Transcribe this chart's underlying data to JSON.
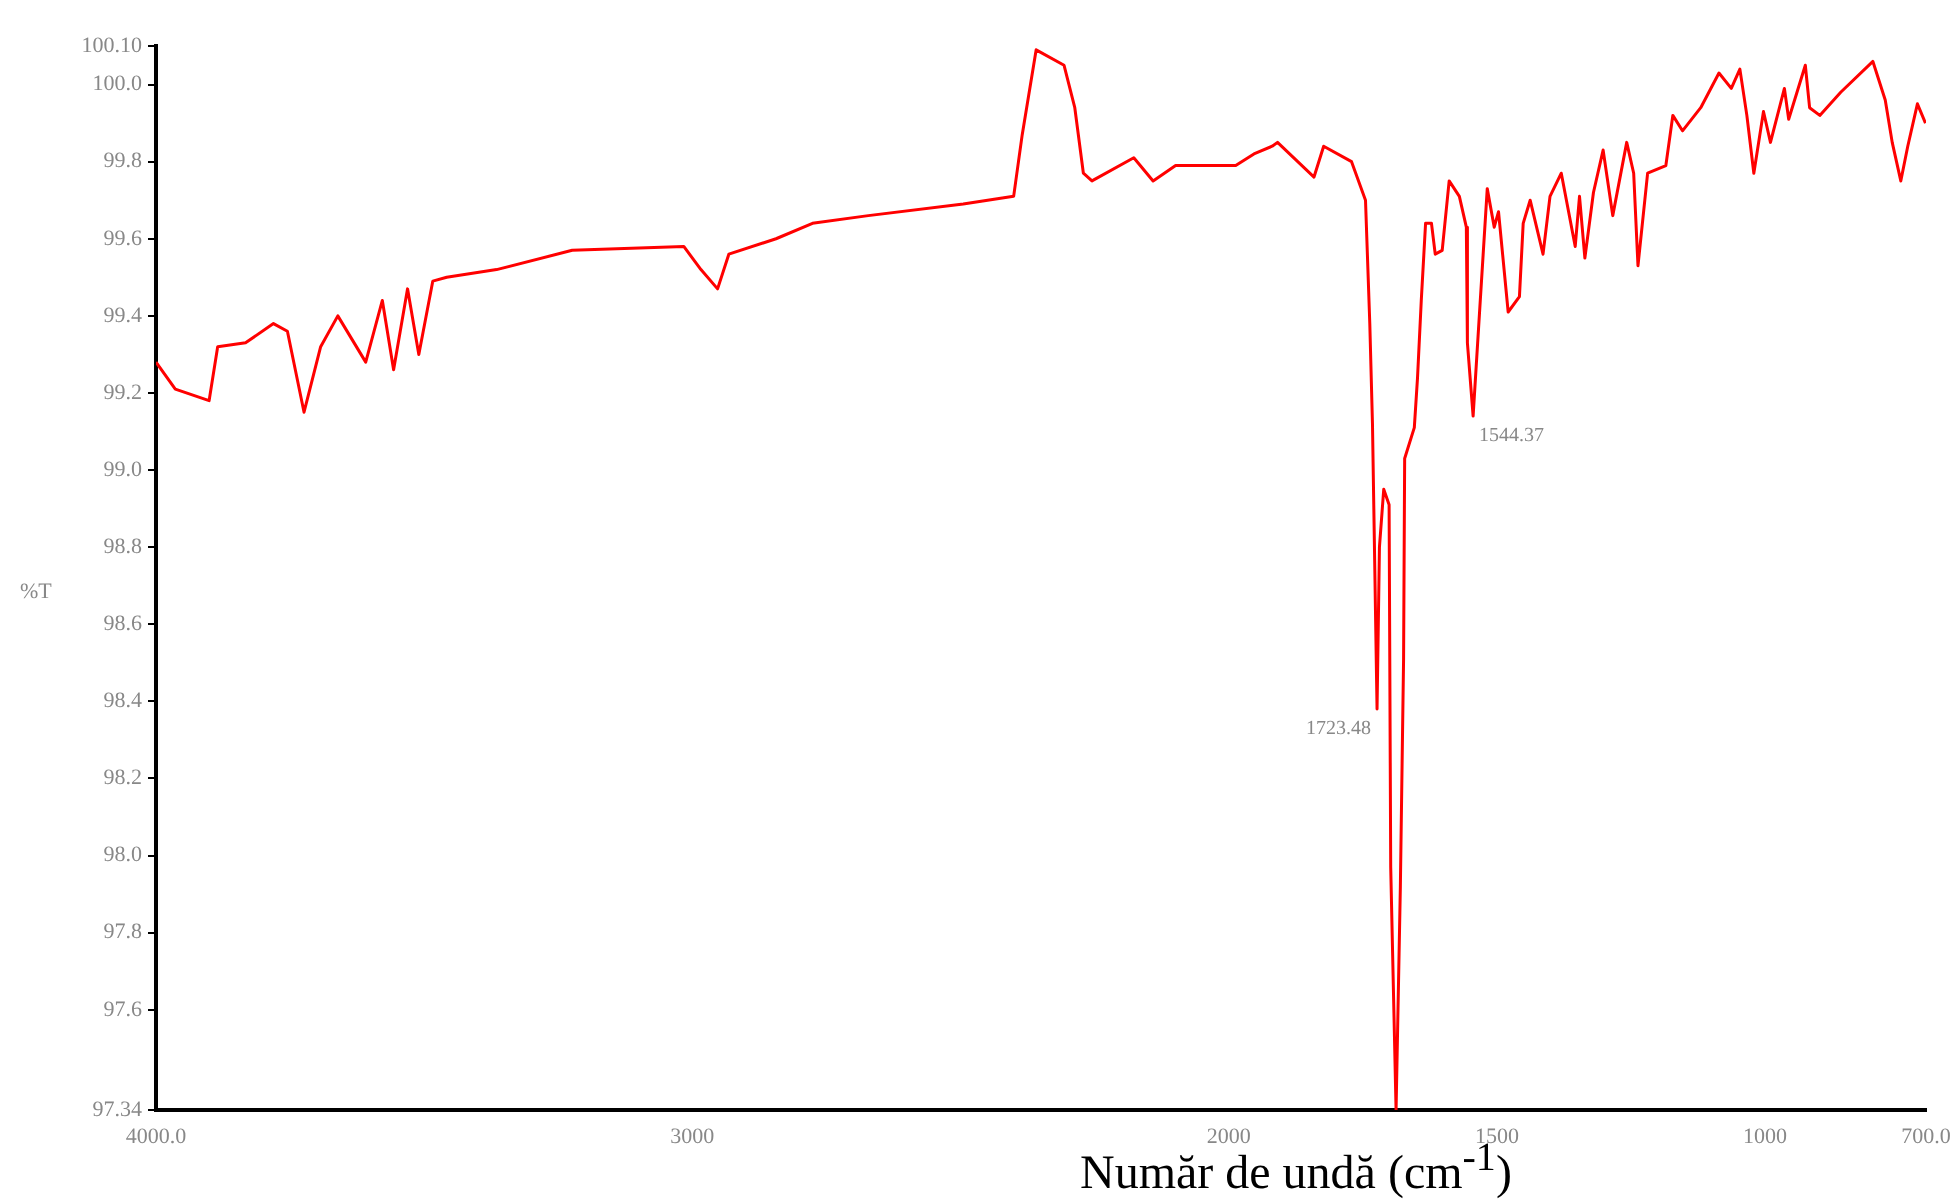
{
  "chart_data": {
    "type": "line",
    "xlabel": "Număr de undă  (cm$^{-1}$)",
    "ylabel": "%T",
    "xlim": [
      4000,
      700
    ],
    "xticks": [
      {
        "value": 4000,
        "label": "4000.0"
      },
      3000,
      2000,
      1500,
      1000,
      {
        "value": 700,
        "label": "700.0"
      }
    ],
    "ylim": [
      97.34,
      100.1
    ],
    "yticks": [
      97.34,
      97.6,
      97.8,
      {
        "value": 98.0,
        "label": "98.0"
      },
      98.2,
      98.4,
      98.6,
      98.8,
      {
        "value": 99.0,
        "label": "99.0"
      },
      99.2,
      99.4,
      99.6,
      99.8,
      {
        "value": 100.0,
        "label": "100.0"
      },
      {
        "value": 100.1,
        "label": "100.10"
      }
    ],
    "grid": false,
    "legend": false,
    "marker": "none",
    "line_style": "solid",
    "annotations": [
      {
        "text": "1723.48",
        "x": 1723.48,
        "y": 98.38
      },
      {
        "text": "1544.37",
        "x": 1544.37,
        "y": 99.14
      }
    ],
    "series": [
      {
        "color": "#ff0000",
        "x": [
          4000,
          3964,
          3901,
          3885,
          3833,
          3781,
          3755,
          3724,
          3693,
          3661,
          3609,
          3578,
          3557,
          3531,
          3510,
          3484,
          3458,
          3365,
          3224,
          3016,
          2984,
          2953,
          2932,
          2844,
          2776,
          2672,
          2495,
          2401,
          2385,
          2359,
          2307,
          2287,
          2271,
          2255,
          2177,
          2141,
          2099,
          1987,
          1953,
          1919,
          1909,
          1841,
          1823,
          1771,
          1745,
          1737,
          1732,
          1723.48,
          1719,
          1711,
          1701,
          1698,
          1688,
          1680,
          1674,
          1672,
          1654,
          1648,
          1641,
          1633,
          1622,
          1615,
          1602,
          1589,
          1570,
          1557,
          1555,
          1544.37,
          1531,
          1518,
          1505,
          1497,
          1479,
          1458,
          1451,
          1438,
          1414,
          1401,
          1380,
          1354,
          1346,
          1336,
          1320,
          1302,
          1284,
          1258,
          1245,
          1237,
          1219,
          1185,
          1172,
          1154,
          1120,
          1086,
          1063,
          1047,
          1034,
          1021,
          1003,
          990,
          964,
          956,
          925,
          917,
          898,
          859,
          799,
          776,
          763,
          747,
          734,
          716,
          701
        ],
        "values": [
          99.28,
          99.21,
          99.18,
          99.32,
          99.33,
          99.38,
          99.36,
          99.15,
          99.32,
          99.4,
          99.28,
          99.44,
          99.26,
          99.47,
          99.3,
          99.49,
          99.5,
          99.52,
          99.57,
          99.58,
          99.52,
          99.47,
          99.56,
          99.6,
          99.64,
          99.66,
          99.69,
          99.71,
          99.87,
          100.09,
          100.05,
          99.94,
          99.77,
          99.75,
          99.81,
          99.75,
          99.79,
          99.79,
          99.82,
          99.84,
          99.85,
          99.76,
          99.84,
          99.8,
          99.7,
          99.38,
          99.12,
          98.38,
          98.8,
          98.95,
          98.91,
          97.97,
          97.34,
          97.92,
          98.51,
          99.03,
          99.11,
          99.24,
          99.44,
          99.64,
          99.64,
          99.56,
          99.57,
          99.75,
          99.71,
          99.63,
          99.33,
          99.14,
          99.44,
          99.73,
          99.63,
          99.67,
          99.41,
          99.45,
          99.64,
          99.7,
          99.56,
          99.71,
          99.77,
          99.58,
          99.71,
          99.55,
          99.72,
          99.83,
          99.66,
          99.85,
          99.77,
          99.53,
          99.77,
          99.79,
          99.92,
          99.88,
          99.94,
          100.03,
          99.99,
          100.04,
          99.92,
          99.77,
          99.93,
          99.85,
          99.99,
          99.91,
          100.05,
          99.94,
          99.92,
          99.98,
          100.06,
          99.96,
          99.85,
          99.75,
          99.84,
          99.95,
          99.9
        ]
      }
    ]
  }
}
